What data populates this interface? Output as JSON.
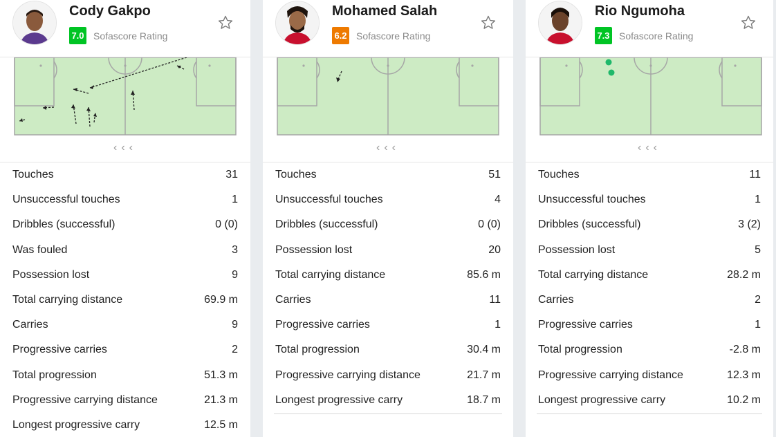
{
  "colors": {
    "rating_green": "#00c424",
    "rating_orange": "#ee7a00",
    "pitch": "#cdebc4",
    "pitch_line": "#a6a6a6"
  },
  "cards": [
    {
      "name": "Cody Gakpo",
      "rating": "7.0",
      "rating_color": "#00c424",
      "rating_label": "Sofascore Rating",
      "icons": {
        "star": "star-icon",
        "nav": "chevron-left-icon"
      },
      "stats": [
        {
          "label": "Touches",
          "value": "31"
        },
        {
          "label": "Unsuccessful touches",
          "value": "1"
        },
        {
          "label": "Dribbles (successful)",
          "value": "0 (0)"
        },
        {
          "label": "Was fouled",
          "value": "3"
        },
        {
          "label": "Possession lost",
          "value": "9"
        },
        {
          "label": "Total carrying distance",
          "value": "69.9 m"
        },
        {
          "label": "Carries",
          "value": "9"
        },
        {
          "label": "Progressive carries",
          "value": "2"
        },
        {
          "label": "Total progression",
          "value": "51.3 m"
        },
        {
          "label": "Progressive carrying distance",
          "value": "21.3 m"
        },
        {
          "label": "Longest progressive carry",
          "value": "12.5 m"
        }
      ]
    },
    {
      "name": "Mohamed Salah",
      "rating": "6.2",
      "rating_color": "#ee7a00",
      "rating_label": "Sofascore Rating",
      "icons": {
        "star": "star-icon",
        "nav": "chevron-left-icon"
      },
      "stats": [
        {
          "label": "Touches",
          "value": "51"
        },
        {
          "label": "Unsuccessful touches",
          "value": "4"
        },
        {
          "label": "Dribbles (successful)",
          "value": "0 (0)"
        },
        {
          "label": "Possession lost",
          "value": "20"
        },
        {
          "label": "Total carrying distance",
          "value": "85.6 m"
        },
        {
          "label": "Carries",
          "value": "11"
        },
        {
          "label": "Progressive carries",
          "value": "1"
        },
        {
          "label": "Total progression",
          "value": "30.4 m"
        },
        {
          "label": "Progressive carrying distance",
          "value": "21.7 m"
        },
        {
          "label": "Longest progressive carry",
          "value": "18.7 m"
        }
      ]
    },
    {
      "name": "Rio Ngumoha",
      "rating": "7.3",
      "rating_color": "#00c424",
      "rating_label": "Sofascore Rating",
      "icons": {
        "star": "star-icon",
        "nav": "chevron-left-icon"
      },
      "stats": [
        {
          "label": "Touches",
          "value": "11"
        },
        {
          "label": "Unsuccessful touches",
          "value": "1"
        },
        {
          "label": "Dribbles (successful)",
          "value": "3 (2)"
        },
        {
          "label": "Possession lost",
          "value": "5"
        },
        {
          "label": "Total carrying distance",
          "value": "28.2 m"
        },
        {
          "label": "Carries",
          "value": "2"
        },
        {
          "label": "Progressive carries",
          "value": "1"
        },
        {
          "label": "Total progression",
          "value": "-2.8 m"
        },
        {
          "label": "Progressive carrying distance",
          "value": "12.3 m"
        },
        {
          "label": "Longest progressive carry",
          "value": "10.2 m"
        }
      ]
    }
  ]
}
